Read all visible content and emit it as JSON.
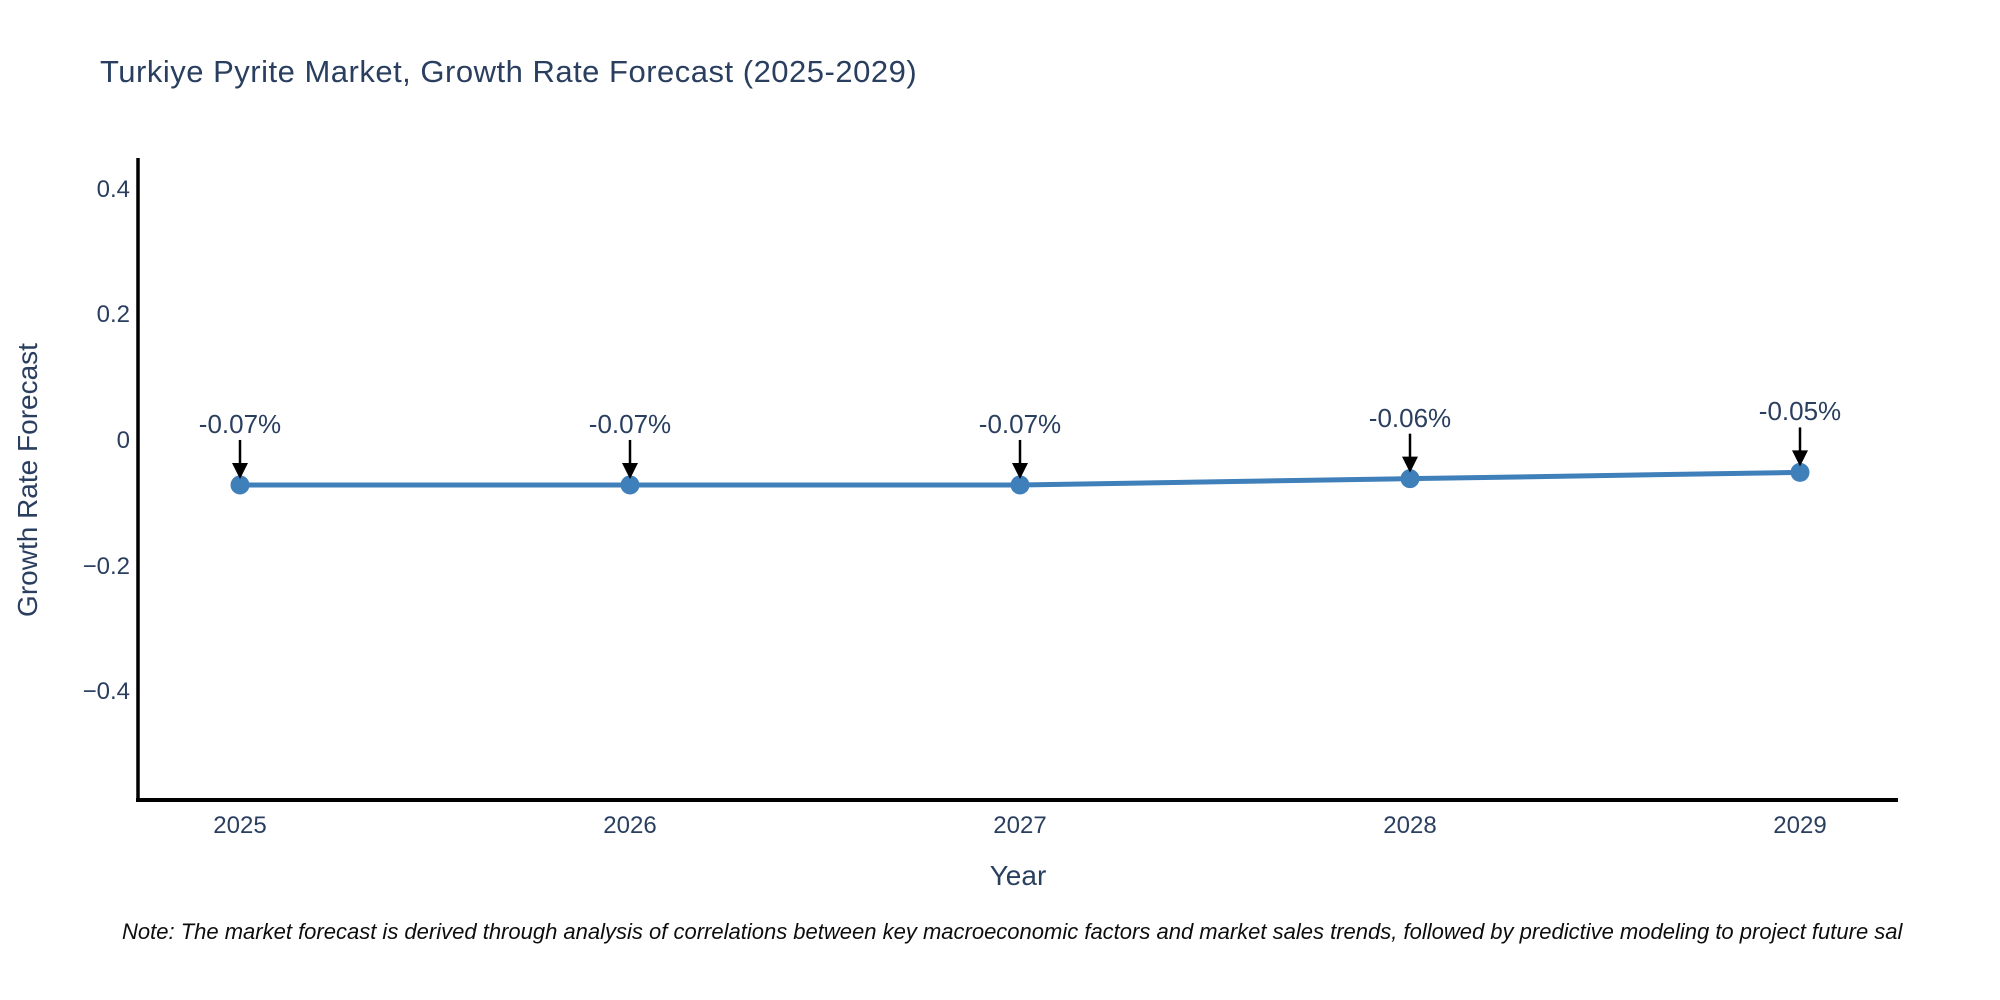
{
  "chart": {
    "title": "Turkiye Pyrite Market, Growth Rate Forecast (2025-2029)",
    "note": "Note: The market forecast is derived through analysis of correlations between key macroeconomic factors and market sales trends, followed by predictive modeling to project future sal",
    "colors": {
      "title_text": "#2a3f5f",
      "tick_text": "#2a3f5f",
      "line": "#3f7fba",
      "marker": "#3f7fba",
      "axis_line": "#000000",
      "annotation_arrow": "#000000",
      "background": "#ffffff"
    }
  },
  "chart_data": {
    "type": "line",
    "title": "Turkiye Pyrite Market, Growth Rate Forecast (2025-2029)",
    "xlabel": "Year",
    "ylabel": "Growth Rate Forecast",
    "categories": [
      "2025",
      "2026",
      "2027",
      "2028",
      "2029"
    ],
    "x": [
      2025,
      2026,
      2027,
      2028,
      2029
    ],
    "series": [
      {
        "name": "Growth Rate Forecast",
        "values": [
          -0.07,
          -0.07,
          -0.07,
          -0.06,
          -0.05
        ]
      }
    ],
    "point_labels": [
      "-0.07%",
      "-0.07%",
      "-0.07%",
      "-0.06%",
      "-0.05%"
    ],
    "yticks": {
      "values": [
        0.4,
        0.2,
        0,
        -0.2,
        -0.4
      ],
      "labels": [
        "0.4",
        "0.2",
        "0",
        "−0.2",
        "−0.4"
      ]
    },
    "ylim": [
      -0.57,
      0.44
    ],
    "xlim": [
      2024.74,
      2029.25
    ],
    "grid": false,
    "legend_position": "none",
    "markers": true,
    "annotations_have_arrows": true
  }
}
